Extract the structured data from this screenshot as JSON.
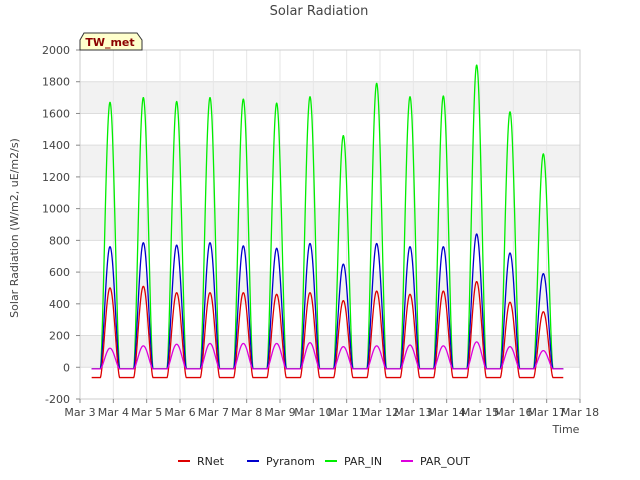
{
  "chart_data": {
    "type": "line",
    "title": "Solar Radiation",
    "xlabel": "Time",
    "ylabel": "Solar Radiation (W/m2, uE/m2/s)",
    "station_label": "TW_met",
    "xlim": [
      3,
      18
    ],
    "ylim": [
      -200,
      2000
    ],
    "x_ticks": [
      3,
      4,
      5,
      6,
      7,
      8,
      9,
      10,
      11,
      12,
      13,
      14,
      15,
      16,
      17,
      18
    ],
    "x_tick_labels": [
      "Mar 3",
      "Mar 4",
      "Mar 5",
      "Mar 6",
      "Mar 7",
      "Mar 8",
      "Mar 9",
      "Mar 10",
      "Mar 11",
      "Mar 12",
      "Mar 13",
      "Mar 14",
      "Mar 15",
      "Mar 16",
      "Mar 17",
      "Mar 18"
    ],
    "y_ticks": [
      -200,
      0,
      200,
      400,
      600,
      800,
      1000,
      1200,
      1400,
      1600,
      1800,
      2000
    ],
    "grid": true,
    "banded_background": true,
    "legend_position": "bottom",
    "colors": {
      "RNet": "#dd0000",
      "Pyranom": "#0000cc",
      "PAR_IN": "#00ee00",
      "PAR_OUT": "#dd00dd"
    },
    "days": [
      4,
      5,
      6,
      7,
      8,
      9,
      10,
      11,
      12,
      13,
      14,
      15,
      16,
      17
    ],
    "series": [
      {
        "name": "PAR_IN",
        "night": -10,
        "peaks": [
          1670,
          1700,
          1675,
          1700,
          1690,
          1665,
          1705,
          1460,
          1790,
          1705,
          1710,
          1905,
          1610,
          1345
        ]
      },
      {
        "name": "Pyranom",
        "night": -10,
        "peaks": [
          760,
          785,
          770,
          785,
          765,
          750,
          780,
          650,
          780,
          760,
          760,
          840,
          720,
          590
        ]
      },
      {
        "name": "RNet",
        "night": -65,
        "peaks": [
          500,
          510,
          470,
          470,
          470,
          460,
          470,
          420,
          480,
          460,
          480,
          540,
          410,
          350
        ]
      },
      {
        "name": "PAR_OUT",
        "night": -10,
        "peaks": [
          120,
          135,
          145,
          150,
          150,
          150,
          155,
          130,
          135,
          140,
          135,
          160,
          130,
          105
        ]
      }
    ],
    "legend_order": [
      "RNet",
      "Pyranom",
      "PAR_IN",
      "PAR_OUT"
    ]
  }
}
